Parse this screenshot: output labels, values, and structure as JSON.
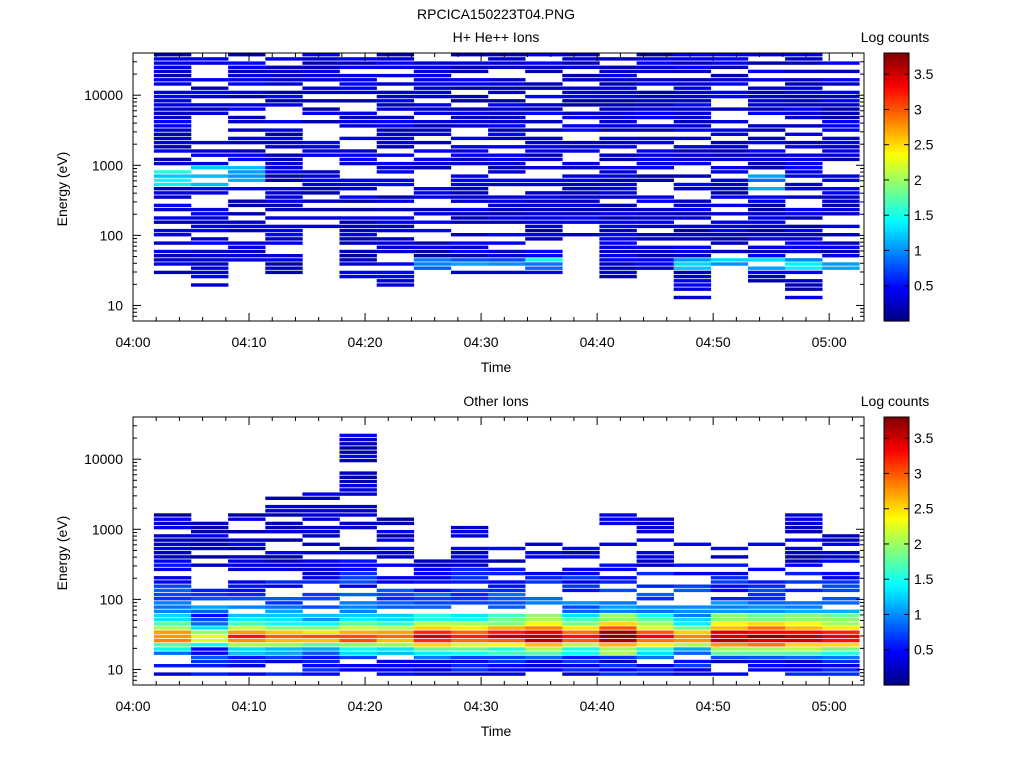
{
  "figure_title": "RPCICA150223T04.PNG",
  "colors": {
    "background": "#ffffff",
    "axes": "#000000",
    "colormap": [
      "#00007f",
      "#0000ff",
      "#007fff",
      "#00ffff",
      "#7fff7f",
      "#ffff00",
      "#ff7f00",
      "#ff0000",
      "#7f0000"
    ]
  },
  "chart_data": [
    {
      "type": "heatmap",
      "title": "H+ He++ Ions",
      "xlabel": "Time",
      "ylabel": "Energy (eV)",
      "y_scale": "log",
      "colorbar_label": "Log counts",
      "colorbar_range": [
        0,
        3.8
      ],
      "colorbar_ticks": [
        "0.5",
        "1",
        "1.5",
        "2",
        "2.5",
        "3",
        "3.5"
      ],
      "x_ticks": [
        "04:00",
        "04:10",
        "04:20",
        "04:30",
        "04:40",
        "04:50",
        "05:00"
      ],
      "y_ticks": [
        "10",
        "100",
        "1000",
        "10000"
      ],
      "x_range_min": [
        0,
        63
      ],
      "y_range": [
        6,
        40000
      ],
      "time_bin_edges_min": [
        1.8,
        5,
        8.2,
        11.4,
        14.6,
        17.8,
        21,
        24.2,
        27.4,
        30.6,
        33.8,
        37,
        40.2,
        43.4,
        46.6,
        49.8,
        53,
        56.2,
        59.4,
        62.6
      ],
      "occupancy": {
        "lo_keV": 0.015,
        "hi_eV": 40000,
        "lo_eV_by_bin": [
          28,
          17,
          35,
          28,
          100,
          25,
          17,
          30,
          28,
          28,
          28,
          100,
          22,
          30,
          12,
          30,
          17,
          12,
          30
        ],
        "density": 0.72
      },
      "spectrum": {
        "background_mean": 0.35,
        "features": [
          {
            "t0": 1.8,
            "t1": 11.4,
            "e0": 500,
            "e1": 1000,
            "value": 1.3
          },
          {
            "t0": 24.2,
            "t1": 40.2,
            "e0": 30,
            "e1": 45,
            "value": 0.9
          },
          {
            "t0": 33.8,
            "t1": 37,
            "e0": 40,
            "e1": 50,
            "value": 1.4
          },
          {
            "t0": 46.6,
            "t1": 62.6,
            "e0": 30,
            "e1": 45,
            "value": 1.2
          },
          {
            "t0": 53,
            "t1": 56.2,
            "e0": 400,
            "e1": 900,
            "value": 1.1
          }
        ]
      }
    },
    {
      "type": "heatmap",
      "title": "Other Ions",
      "xlabel": "Time",
      "ylabel": "Energy (eV)",
      "y_scale": "log",
      "colorbar_label": "Log counts",
      "colorbar_range": [
        0,
        3.8
      ],
      "colorbar_ticks": [
        "0.5",
        "1",
        "1.5",
        "2",
        "2.5",
        "3",
        "3.5"
      ],
      "x_ticks": [
        "04:00",
        "04:10",
        "04:20",
        "04:30",
        "04:40",
        "04:50",
        "05:00"
      ],
      "y_ticks": [
        "10",
        "100",
        "1000",
        "10000"
      ],
      "x_range_min": [
        0,
        63
      ],
      "y_range": [
        6,
        40000
      ],
      "time_bin_edges_min": [
        1.8,
        5,
        8.2,
        11.4,
        14.6,
        17.8,
        21,
        24.2,
        27.4,
        30.6,
        33.8,
        37,
        40.2,
        43.4,
        46.6,
        49.8,
        53,
        56.2,
        59.4,
        62.6
      ],
      "column_top_eV": [
        1800,
        1200,
        1700,
        2800,
        3200,
        26000,
        1400,
        400,
        1300,
        600,
        650,
        600,
        1600,
        1400,
        650,
        600,
        650,
        1800,
        850
      ],
      "profile": [
        {
          "e_center": 8,
          "value": 0.5
        },
        {
          "e_center": 13,
          "value": 0.5
        },
        {
          "e_center": 20,
          "value": 1.3
        },
        {
          "e_center": 25,
          "value": 2.6
        },
        {
          "e_center": 31,
          "value": 3.0
        },
        {
          "e_center": 38,
          "value": 2.0
        },
        {
          "e_center": 50,
          "value": 1.2
        },
        {
          "e_center": 80,
          "value": 0.9
        },
        {
          "e_center": 150,
          "value": 0.6
        },
        {
          "e_center": 400,
          "value": 0.3
        }
      ],
      "column_offsets": [
        0,
        -0.6,
        0.2,
        0.1,
        0.0,
        0.2,
        0.1,
        0.5,
        0.4,
        0.5,
        0.9,
        0.3,
        0.9,
        0.4,
        0.0,
        0.8,
        0.8,
        0.7,
        0.6
      ]
    }
  ]
}
